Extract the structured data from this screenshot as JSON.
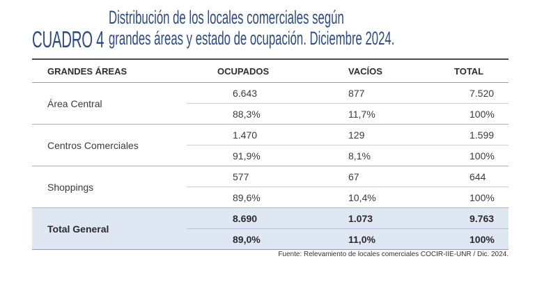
{
  "header": {
    "label": "CUADRO 4",
    "title_line1": "Distribución de los locales comerciales según",
    "title_line2": "grandes áreas y estado de ocupación. Diciembre 2024."
  },
  "table": {
    "columns": [
      "GRANDES ÁREAS",
      "OCUPADOS",
      "VACÍOS",
      "TOTAL"
    ],
    "rows": [
      {
        "area": "Área Central",
        "abs": [
          "6.643",
          "877",
          "7.520"
        ],
        "pct": [
          "88,3%",
          "11,7%",
          "100%"
        ]
      },
      {
        "area": "Centros Comerciales",
        "abs": [
          "1.470",
          "129",
          "1.599"
        ],
        "pct": [
          "91,9%",
          "8,1%",
          "100%"
        ]
      },
      {
        "area": "Shoppings",
        "abs": [
          "577",
          "67",
          "644"
        ],
        "pct": [
          "89,6%",
          "10,4%",
          "100%"
        ]
      }
    ],
    "total": {
      "area": "Total General",
      "abs": [
        "8.690",
        "1.073",
        "9.763"
      ],
      "pct": [
        "89,0%",
        "11,0%",
        "100%"
      ]
    }
  },
  "source": "Fuente: Relevamiento de locales comerciales COCIR-IIE-UNR / Dic. 2024.",
  "colors": {
    "title": "#2b4a8c",
    "total_bg": "#dfe7f3"
  }
}
